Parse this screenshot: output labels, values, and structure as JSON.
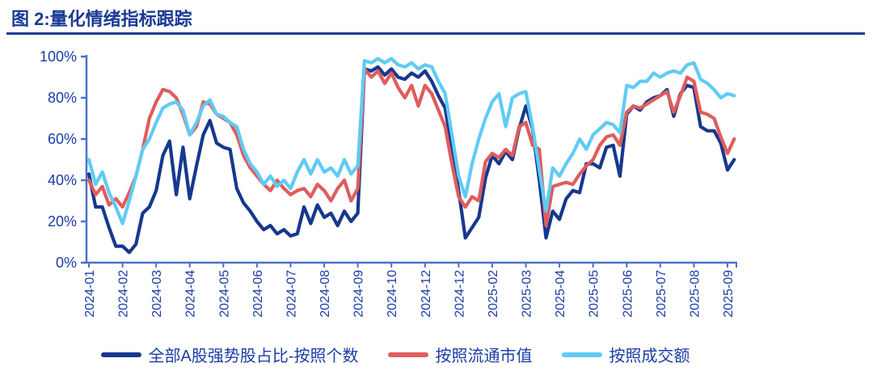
{
  "header": {
    "title": "图 2:量化情绪指标跟踪",
    "title_color": "#1A3A94",
    "rule_color": "#1A3A94"
  },
  "chart_data": {
    "type": "line",
    "title": "量化情绪指标跟踪",
    "xlabel": "",
    "ylabel": "",
    "ylim": [
      0,
      100
    ],
    "grid": false,
    "legend_position": "bottom",
    "axis_color": "#4A72CC",
    "label_color": "#1C3DA6",
    "y_ticks": [
      "0%",
      "20%",
      "40%",
      "60%",
      "80%",
      "100%"
    ],
    "x_labels": [
      "2024-01",
      "2024-02",
      "2024-03",
      "2024-04",
      "2024-05",
      "2024-06",
      "2024-07",
      "2024-08",
      "2024-09",
      "2024-10",
      "2024-12",
      "2024-12",
      "2025-02",
      "2025-03",
      "2025-04",
      "2025-05",
      "2025-06",
      "2025-07",
      "2025-08",
      "2025-09"
    ],
    "points_per_tick": 5,
    "series": [
      {
        "name": "全部A股强势股占比-按照个数",
        "color": "#16388E",
        "values": [
          43,
          27,
          27,
          17,
          8,
          8,
          5,
          9,
          24,
          27,
          35,
          52,
          59,
          33,
          56,
          31,
          47,
          62,
          69,
          58,
          56,
          55,
          36,
          29,
          25,
          20,
          16,
          18,
          14,
          16,
          13,
          14,
          27,
          19,
          28,
          22,
          24,
          18,
          25,
          20,
          24,
          94,
          93,
          95,
          91,
          94,
          90,
          89,
          92,
          90,
          93,
          88,
          81,
          75,
          55,
          35,
          12,
          17,
          22,
          41,
          52,
          48,
          54,
          50,
          65,
          76,
          65,
          40,
          12,
          25,
          21,
          31,
          35,
          34,
          48,
          48,
          46,
          56,
          57,
          42,
          72,
          76,
          74,
          78,
          80,
          81,
          84,
          71,
          82,
          86,
          85,
          66,
          64,
          64,
          58,
          45,
          50
        ]
      },
      {
        "name": "按照流通市值",
        "color": "#E05C5C",
        "values": [
          40,
          33,
          37,
          28,
          31,
          27,
          34,
          42,
          55,
          70,
          78,
          84,
          83,
          80,
          72,
          62,
          66,
          78,
          77,
          72,
          70,
          68,
          62,
          52,
          46,
          42,
          38,
          35,
          40,
          36,
          33,
          35,
          36,
          32,
          38,
          35,
          30,
          36,
          40,
          30,
          36,
          94,
          90,
          93,
          87,
          92,
          85,
          80,
          86,
          76,
          86,
          82,
          74,
          66,
          48,
          32,
          27,
          32,
          30,
          49,
          53,
          51,
          55,
          52,
          66,
          68,
          57,
          55,
          18,
          37,
          38,
          39,
          38,
          43,
          47,
          50,
          57,
          61,
          62,
          57,
          73,
          76,
          75,
          77,
          79,
          81,
          83,
          73,
          81,
          90,
          88,
          73,
          72,
          70,
          61,
          53,
          60
        ]
      },
      {
        "name": "按照成交额",
        "color": "#5FCBF5",
        "values": [
          50,
          38,
          44,
          34,
          27,
          19,
          30,
          42,
          55,
          60,
          68,
          75,
          77,
          78,
          74,
          62,
          68,
          76,
          79,
          72,
          71,
          68,
          66,
          55,
          48,
          44,
          38,
          42,
          37,
          40,
          36,
          44,
          50,
          43,
          50,
          44,
          46,
          42,
          50,
          43,
          47,
          98,
          97,
          99,
          97,
          99,
          96,
          95,
          97,
          94,
          96,
          95,
          88,
          82,
          62,
          42,
          32,
          48,
          60,
          70,
          78,
          82,
          66,
          80,
          82,
          83,
          66,
          45,
          25,
          46,
          42,
          48,
          53,
          60,
          55,
          62,
          65,
          68,
          67,
          63,
          86,
          85,
          88,
          88,
          92,
          90,
          92,
          93,
          92,
          96,
          97,
          89,
          87,
          84,
          80,
          82,
          81
        ]
      }
    ]
  }
}
